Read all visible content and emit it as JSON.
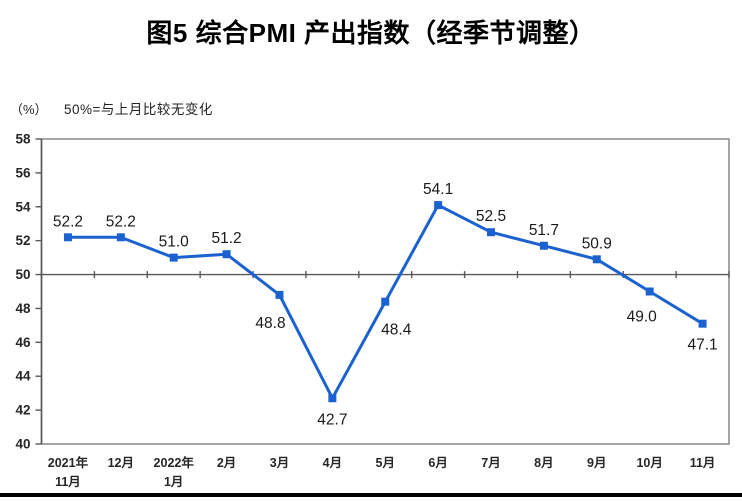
{
  "title": "图5 综合PMI 产出指数（经季节调整）",
  "y_axis_unit": "（%）",
  "reference_note": "50%=与上月比较无变化",
  "colors": {
    "line": "#1B62D0",
    "axis": "#595959",
    "plot_border": "#808080",
    "tick_label": "#262626",
    "data_label": "#1a1a1a"
  },
  "chart_data": {
    "type": "line",
    "title": "图5 综合PMI 产出指数（经季节调整）",
    "ylabel": "（%）",
    "annotation": "50%=与上月比较无变化",
    "categories": [
      "2021年11月",
      "12月",
      "2022年1月",
      "2月",
      "3月",
      "4月",
      "5月",
      "6月",
      "7月",
      "8月",
      "9月",
      "10月",
      "11月"
    ],
    "category_label_lines": [
      [
        "2021年",
        "11月"
      ],
      [
        "12月"
      ],
      [
        "2022年",
        "1月"
      ],
      [
        "2月"
      ],
      [
        "3月"
      ],
      [
        "4月"
      ],
      [
        "5月"
      ],
      [
        "6月"
      ],
      [
        "7月"
      ],
      [
        "8月"
      ],
      [
        "9月"
      ],
      [
        "10月"
      ],
      [
        "11月"
      ]
    ],
    "values": [
      52.2,
      52.2,
      51.0,
      51.2,
      48.8,
      42.7,
      48.4,
      54.1,
      52.5,
      51.7,
      50.9,
      49.0,
      47.1
    ],
    "data_labels": [
      "52.2",
      "52.2",
      "51.0",
      "51.2",
      "48.8",
      "42.7",
      "48.4",
      "54.1",
      "52.5",
      "51.7",
      "50.9",
      "49.0",
      "47.1"
    ],
    "ylim": [
      40,
      58
    ],
    "yticks": [
      40,
      42,
      44,
      46,
      48,
      50,
      52,
      54,
      56,
      58
    ],
    "reference_line": 50,
    "grid": false,
    "legend_position": "none",
    "marker": "square"
  }
}
